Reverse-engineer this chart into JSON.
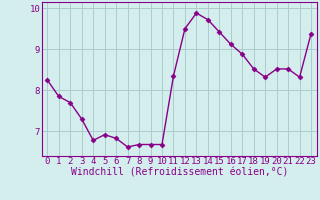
{
  "x": [
    0,
    1,
    2,
    3,
    4,
    5,
    6,
    7,
    8,
    9,
    10,
    11,
    12,
    13,
    14,
    15,
    16,
    17,
    18,
    19,
    20,
    21,
    22,
    23
  ],
  "y": [
    8.25,
    7.85,
    7.7,
    7.3,
    6.78,
    6.92,
    6.83,
    6.62,
    6.68,
    6.68,
    6.68,
    8.35,
    9.5,
    9.88,
    9.72,
    9.42,
    9.12,
    8.88,
    8.52,
    8.32,
    8.52,
    8.52,
    8.32,
    9.38
  ],
  "line_color": "#880088",
  "bg_color": "#d4eeee",
  "plot_bg_color": "#d4eeee",
  "grid_color": "#aacccc",
  "axis_color": "#880088",
  "xlabel": "Windchill (Refroidissement éolien,°C)",
  "ylim": [
    6.4,
    10.15
  ],
  "yticks": [
    7,
    8,
    9,
    10
  ],
  "xticks": [
    0,
    1,
    2,
    3,
    4,
    5,
    6,
    7,
    8,
    9,
    10,
    11,
    12,
    13,
    14,
    15,
    16,
    17,
    18,
    19,
    20,
    21,
    22,
    23
  ],
  "marker": "D",
  "marker_size": 2.5,
  "line_width": 1.0,
  "xlabel_fontsize": 7.0,
  "tick_fontsize": 6.5
}
